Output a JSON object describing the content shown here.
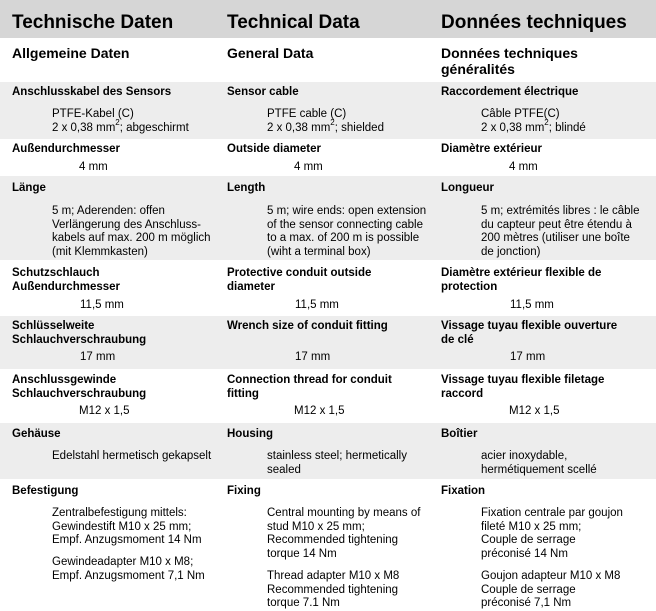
{
  "headers": {
    "de": "Technische Daten",
    "en": "Technical Data",
    "fr": "Données techniques"
  },
  "section": {
    "de": "Allgemeine Daten",
    "en": "General Data",
    "fr_line1": "Données techniques",
    "fr_line2": "généralités"
  },
  "cable": {
    "de_label": "Anschlusskabel des Sensors",
    "en_label": "Sensor cable",
    "fr_label": "Raccordement électrique",
    "de_l1": "PTFE-Kabel (C)",
    "de_l2a": "2 x 0,38 mm",
    "de_sup": "2",
    "de_l2b": "; abgeschirmt",
    "en_l1": "PTFE cable (C)",
    "en_l2a": "2 x 0,38 mm",
    "en_sup": "2",
    "en_l2b": "; shielded",
    "fr_l1": "Câble PTFE(C)",
    "fr_l2a": "2 x 0,38 mm",
    "fr_sup": "2",
    "fr_l2b": "; blindé"
  },
  "diameter": {
    "de_label": "Außendurchmesser",
    "en_label": "Outside diameter",
    "fr_label": "Diamètre extérieur",
    "value": "4 mm"
  },
  "length": {
    "de_label": "Länge",
    "en_label": "Length",
    "fr_label": "Longueur",
    "de_lines": [
      "5 m; Aderenden: offen",
      "Verlängerung des Anschluss-",
      "kabels auf max. 200 m möglich",
      "(mit Klemmkasten)"
    ],
    "en_lines": [
      "5 m; wire ends: open extension",
      "of the sensor connecting cable",
      "to a max. of 200 m is possible",
      "(wiht a terminal box)"
    ],
    "fr_lines": [
      "5 m; extrémités libres : le câble",
      "du capteur peut être étendu à",
      "200 mètres (utiliser une boîte",
      "de jonction)"
    ]
  },
  "conduit": {
    "de_label1": "Schutzschlauch",
    "de_label2": "Außendurchmesser",
    "en_label1": "Protective conduit outside",
    "en_label2": "diameter",
    "fr_label1": "Diamètre extérieur flexible de",
    "fr_label2": "protection",
    "value": "11,5 mm"
  },
  "wrench": {
    "de_label1": "Schlüsselweite",
    "de_label2": "Schlauchverschraubung",
    "en_label1": "Wrench size of conduit fitting",
    "fr_label1": "Vissage tuyau flexible ouverture",
    "fr_label2": "de clé",
    "value": "17 mm"
  },
  "thread": {
    "de_label1": "Anschlussgewinde",
    "de_label2": "Schlauchverschraubung",
    "en_label1": "Connection thread for conduit",
    "en_label2": "fitting",
    "fr_label1": "Vissage tuyau flexible filetage",
    "fr_label2": "raccord",
    "value": "M12 x 1,5"
  },
  "housing": {
    "de_label": "Gehäuse",
    "en_label": "Housing",
    "fr_label": "Boîtier",
    "de_lines": [
      "Edelstahl hermetisch gekapselt"
    ],
    "en_lines": [
      "stainless steel; hermetically",
      "sealed"
    ],
    "fr_lines": [
      "acier inoxydable,",
      "hermétiquement scellé"
    ]
  },
  "fixing": {
    "de_label": "Befestigung",
    "en_label": "Fixing",
    "fr_label": "Fixation",
    "de_a": [
      "Zentralbefestigung mittels:",
      "Gewindestift M10 x 25 mm;",
      "Empf. Anzugsmoment 14 Nm"
    ],
    "de_b": [
      "Gewindeadapter M10 x M8;",
      "Empf. Anzugsmoment 7,1 Nm"
    ],
    "en_a": [
      "Central mounting by means of",
      "stud M10 x 25 mm;",
      "Recommended tightening",
      "torque  14 Nm"
    ],
    "en_b": [
      "Thread adapter M10 x M8",
      "Recommended tightening",
      "torque 7.1 Nm"
    ],
    "fr_a": [
      "Fixation centrale par goujon",
      "fileté M10 x 25 mm;",
      "Couple de serrage",
      "préconisé  14 Nm"
    ],
    "fr_b": [
      "Goujon adapteur M10 x M8",
      "Couple de serrage",
      "préconisé 7,1 Nm"
    ]
  }
}
